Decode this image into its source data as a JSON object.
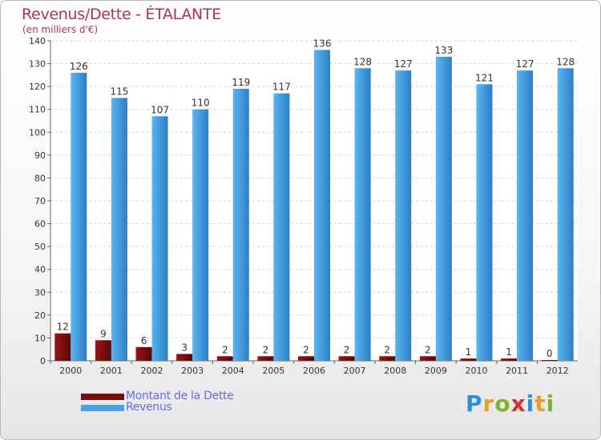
{
  "chart_data": {
    "type": "bar",
    "title": "Revenus/Dette - ÉTALANTE",
    "subtitle": "(en milliers d'€)",
    "categories": [
      "2000",
      "2001",
      "2002",
      "2003",
      "2004",
      "2005",
      "2006",
      "2007",
      "2008",
      "2009",
      "2010",
      "2011",
      "2012"
    ],
    "series": [
      {
        "name": "Montant de la Dette",
        "values": [
          12,
          9,
          6,
          3,
          2,
          2,
          2,
          2,
          2,
          2,
          1,
          1,
          0
        ],
        "color": "#7a0c0c"
      },
      {
        "name": "Revenus",
        "values": [
          126,
          115,
          107,
          110,
          119,
          117,
          136,
          128,
          127,
          133,
          121,
          127,
          128
        ],
        "color": "#4aa3e6"
      }
    ],
    "ylim": [
      0,
      140
    ],
    "yticks": [
      0,
      10,
      20,
      30,
      40,
      50,
      60,
      70,
      80,
      90,
      100,
      110,
      120,
      130,
      140
    ],
    "grid": true,
    "legend": "bottom-left"
  },
  "logo": {
    "letters": [
      "P",
      "r",
      "o",
      "x",
      "i",
      "t",
      "i"
    ],
    "colors": [
      "#2a8fd8",
      "#e8a020",
      "#7ab62a",
      "#d83030",
      "#2a8fd8",
      "#e8a020",
      "#7ab62a"
    ]
  }
}
